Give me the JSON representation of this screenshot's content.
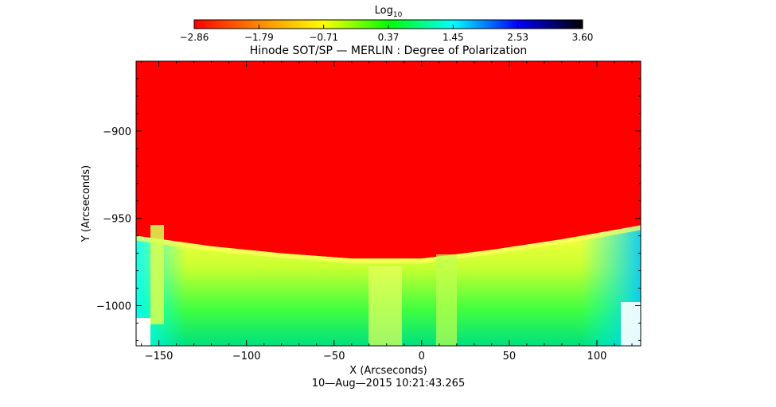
{
  "chart_data": {
    "type": "heatmap",
    "title": "Hinode SOT/SP — MERLIN : Degree of Polarization",
    "xlabel": "X (Arcseconds)",
    "ylabel": "Y (Arcseconds)",
    "timestamp": "10—Aug—2015 10:21:43.265",
    "xlim": [
      -163,
      125
    ],
    "ylim": [
      -1023,
      -860
    ],
    "x_ticks": [
      {
        "value": -150,
        "label": "−150"
      },
      {
        "value": -100,
        "label": "−100"
      },
      {
        "value": -50,
        "label": "−50"
      },
      {
        "value": 0,
        "label": "0"
      },
      {
        "value": 50,
        "label": "50"
      },
      {
        "value": 100,
        "label": "100"
      }
    ],
    "y_ticks": [
      {
        "value": -900,
        "label": "−900"
      },
      {
        "value": -950,
        "label": "−950"
      },
      {
        "value": -1000,
        "label": "−1000"
      }
    ],
    "colorbar": {
      "title": "Log",
      "title_sub": "10",
      "range": [
        -2.86,
        3.6
      ],
      "tick_labels": [
        "−2.86",
        "−1.79",
        "−0.71",
        "0.37",
        "1.45",
        "2.53",
        "3.60"
      ],
      "colors": [
        "#ff0000",
        "#ff8800",
        "#ffff00",
        "#00ff00",
        "#00ffff",
        "#0000ff",
        "#000000"
      ]
    },
    "limb_boundary": [
      {
        "x": -163,
        "y": -960
      },
      {
        "x": -120,
        "y": -966
      },
      {
        "x": -80,
        "y": -970
      },
      {
        "x": -40,
        "y": -973
      },
      {
        "x": 0,
        "y": -973
      },
      {
        "x": 40,
        "y": -968
      },
      {
        "x": 80,
        "y": -962
      },
      {
        "x": 125,
        "y": -954
      }
    ],
    "background_value": -2.86,
    "near_limb_value": -0.9,
    "off_limb_value": 0.4
  }
}
